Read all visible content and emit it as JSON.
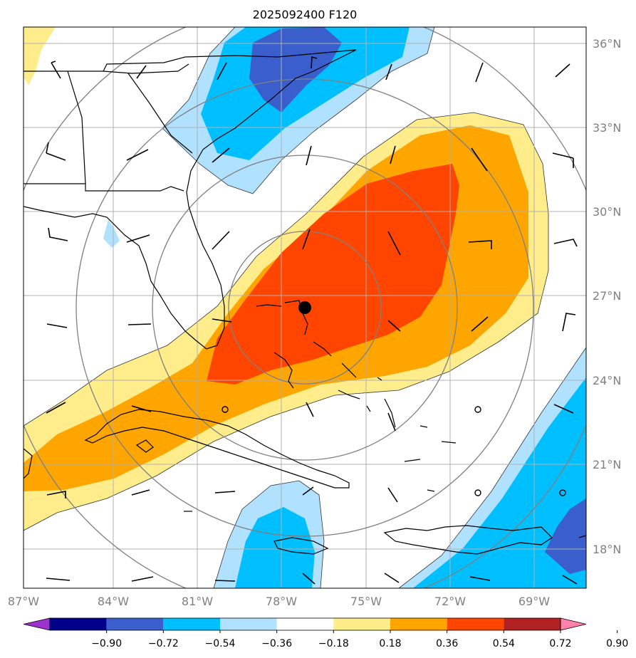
{
  "title": "2025092400 F120",
  "map": {
    "lon_range": [
      -87,
      -66.5
    ],
    "lat_range": [
      16.5,
      36.5
    ],
    "lat_labels": [
      "18°N",
      "21°N",
      "24°N",
      "27°N",
      "30°N",
      "33°N",
      "36°N"
    ],
    "lon_labels": [
      "87°W",
      "84°W",
      "81°W",
      "78°W",
      "75°W",
      "72°W",
      "69°W"
    ],
    "storm_center": {
      "lon": -77.1,
      "lat": 26.6
    }
  },
  "colorbar": {
    "levels": [
      "−0.90",
      "−0.72",
      "−0.54",
      "−0.36",
      "−0.18",
      "0.18",
      "0.36",
      "0.54",
      "0.72",
      "0.90"
    ],
    "colors": [
      "#9a32cd",
      "#00008b",
      "#3a5fcd",
      "#00bfff",
      "#b0e2ff",
      "#ffffff",
      "#ffec8b",
      "#ffa500",
      "#ff4500",
      "#b22222",
      "#ff82ab"
    ]
  },
  "fill_colors": {
    "pos1": "#ffec8b",
    "pos2": "#ffa500",
    "pos3": "#ff4500",
    "neg1": "#b0e2ff",
    "neg2": "#00bfff",
    "neg3": "#3a5fcd"
  }
}
